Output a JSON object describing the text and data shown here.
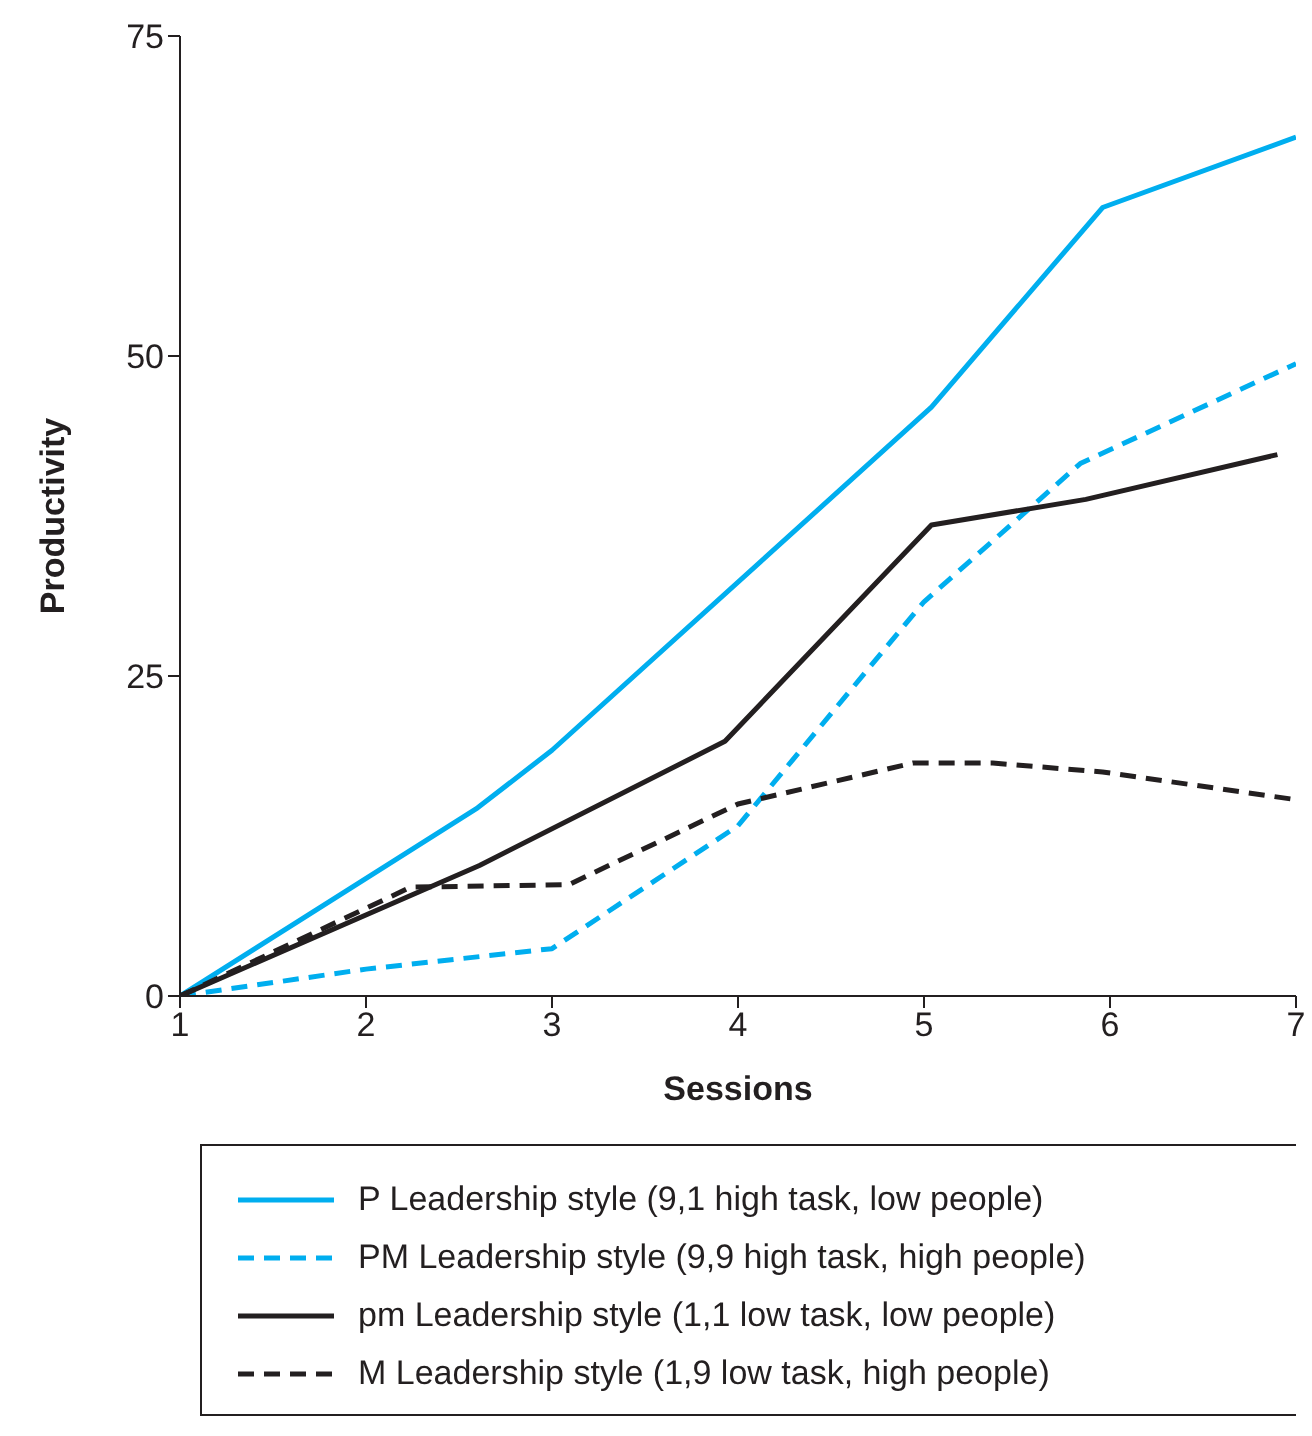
{
  "chart_data": {
    "type": "line",
    "xlabel": "Sessions",
    "ylabel": "Productivity",
    "xlim": [
      1,
      7
    ],
    "xticks": [
      1,
      2,
      3,
      4,
      5,
      6,
      7
    ],
    "ylim": [
      0,
      75
    ],
    "yticks": [
      0,
      25,
      50,
      75
    ],
    "grid": false,
    "legend": "bottom",
    "marker": "none",
    "series": [
      {
        "name": "P Leadership style (9,1 high task, low people)",
        "color": "#00aeef",
        "line_style": "solid",
        "x": [
          1,
          2.6,
          3,
          5.04,
          5.96,
          7
        ],
        "values": [
          0,
          14.7,
          19.2,
          46,
          61.6,
          67.1
        ]
      },
      {
        "name": "PM Leadership style (9,9 high task, high people)",
        "color": "#00aeef",
        "line_style": "dashed",
        "x": [
          1,
          2,
          3,
          4,
          5,
          5.84,
          7
        ],
        "values": [
          0,
          2.1,
          3.7,
          13.3,
          30.8,
          41.6,
          49.4
        ]
      },
      {
        "name": "pm Leadership style (1,1 low task, low people)",
        "color": "#231f20",
        "line_style": "solid",
        "x": [
          1,
          2.61,
          3.93,
          5.04,
          5.87,
          6.9
        ],
        "values": [
          0,
          10.2,
          19.9,
          36.8,
          38.8,
          42.3
        ]
      },
      {
        "name": "M Leadership style (1,9 low task, high people)",
        "color": "#231f20",
        "line_style": "dashed",
        "x": [
          1,
          2.24,
          3.09,
          4,
          4.94,
          5.37,
          5.96,
          6.97
        ],
        "values": [
          0,
          8.5,
          8.7,
          15,
          18.2,
          18.2,
          17.5,
          15.4
        ]
      }
    ]
  }
}
